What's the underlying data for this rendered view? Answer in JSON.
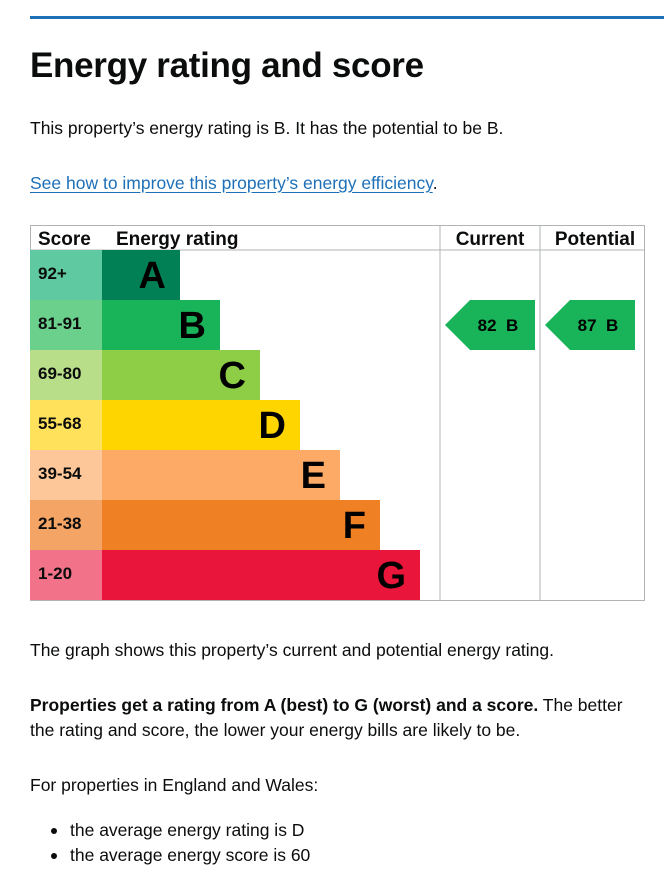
{
  "page": {
    "title": "Energy rating and score",
    "lead": "This property’s energy rating is B. It has the potential to be B.",
    "link_text": "See how to improve this property’s energy efficiency",
    "link_suffix": ".",
    "graph_note": "The graph shows this property’s current and potential energy rating.",
    "rating_note_bold": "Properties get a rating from A (best) to G (worst) and a score.",
    "rating_note_rest": " The better the rating and score, the lower your energy bills are likely to be.",
    "wales_intro": "For properties in England and Wales:",
    "averages": [
      "the average energy rating is D",
      "the average energy score is 60"
    ]
  },
  "chart_data": {
    "type": "bar",
    "headers": {
      "score": "Score",
      "rating": "Energy rating",
      "current": "Current",
      "potential": "Potential"
    },
    "bands": [
      {
        "score_range": "92+",
        "letter": "A",
        "color": "#008054",
        "score_bg": "#5fc9a1"
      },
      {
        "score_range": "81-91",
        "letter": "B",
        "color": "#19b459",
        "score_bg": "#6cd08d"
      },
      {
        "score_range": "69-80",
        "letter": "C",
        "color": "#8dce46",
        "score_bg": "#b8de8a"
      },
      {
        "score_range": "55-68",
        "letter": "D",
        "color": "#ffd500",
        "score_bg": "#ffe15c"
      },
      {
        "score_range": "39-54",
        "letter": "E",
        "color": "#fcaa65",
        "score_bg": "#fdc799"
      },
      {
        "score_range": "21-38",
        "letter": "F",
        "color": "#ef8023",
        "score_bg": "#f4a565"
      },
      {
        "score_range": "1-20",
        "letter": "G",
        "color": "#e9153b",
        "score_bg": "#f27289"
      }
    ],
    "current": {
      "score": "82",
      "letter": "B",
      "band_index": 1,
      "color": "#19b459"
    },
    "potential": {
      "score": "87",
      "letter": "B",
      "band_index": 1,
      "color": "#19b459"
    }
  }
}
